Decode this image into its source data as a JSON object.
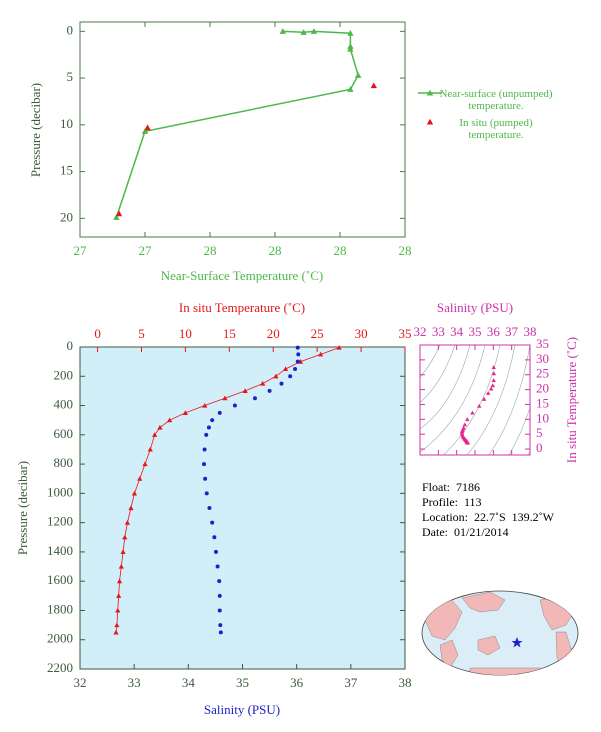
{
  "chart_data": [
    {
      "type": "line",
      "x_label": "Near-Surface Temperature (˚C)",
      "y_label": "Pressure (decibar)",
      "xlim": [
        27,
        28.25
      ],
      "xticks": [
        {
          "value": 27,
          "label": "27"
        },
        {
          "value": 27.25,
          "label": "27"
        },
        {
          "value": 27.5,
          "label": "28"
        },
        {
          "value": 27.75,
          "label": "28"
        },
        {
          "value": 28,
          "label": "28"
        },
        {
          "value": 28.25,
          "label": "28"
        }
      ],
      "ylim": [
        -1,
        22
      ],
      "yticks": [
        0,
        5,
        10,
        15,
        20
      ],
      "y_inverted": true,
      "legend": "right",
      "series": [
        {
          "name": "Near-surface (unpumped) temperature.",
          "color": "#4db848",
          "marker": "triangle",
          "line": true,
          "x": [
            27.78,
            27.86,
            27.9,
            28.04,
            28.04,
            28.04,
            28.07,
            28.04,
            27.25,
            27.14
          ],
          "y": [
            0.0,
            0.1,
            0.0,
            0.2,
            1.6,
            1.9,
            4.7,
            6.2,
            10.7,
            19.9
          ]
        },
        {
          "name": "In situ (pumped) temperature.",
          "color": "#e8141b",
          "marker": "triangle",
          "line": false,
          "x": [
            28.13,
            27.26,
            27.15
          ],
          "y": [
            5.8,
            10.3,
            19.5
          ]
        }
      ]
    },
    {
      "type": "profile",
      "y_label": "Pressure (decibar)",
      "ylim": [
        0,
        2200
      ],
      "yticks": [
        0,
        200,
        400,
        600,
        800,
        1000,
        1200,
        1400,
        1600,
        1800,
        2000,
        2200
      ],
      "y_inverted": true,
      "xlim": [
        32,
        38
      ],
      "xticks": [
        32,
        33,
        34,
        35,
        36,
        37,
        38
      ],
      "x2lim": [
        -2,
        35
      ],
      "x2ticks": [
        0,
        5,
        10,
        15,
        20,
        25,
        30,
        35
      ],
      "background": "#d2eef8",
      "y": [
        4,
        50,
        100,
        150,
        200,
        250,
        300,
        350,
        400,
        450,
        500,
        550,
        600,
        700,
        800,
        900,
        1000,
        1100,
        1200,
        1300,
        1400,
        1500,
        1600,
        1700,
        1800,
        1900,
        1950
      ],
      "series": [
        {
          "name": "In situ Temperature (˚C)",
          "color": "#e8141b",
          "axis": "x2",
          "marker": "triangle",
          "line": true,
          "x": [
            27.5,
            25.4,
            23.1,
            21.4,
            20.3,
            18.8,
            16.8,
            14.5,
            12.2,
            10.0,
            8.2,
            7.1,
            6.5,
            6.0,
            5.4,
            4.8,
            4.2,
            3.8,
            3.4,
            3.1,
            2.9,
            2.7,
            2.5,
            2.4,
            2.3,
            2.2,
            2.1
          ]
        },
        {
          "name": "Salinity (PSU)",
          "color": "#1b22c8",
          "axis": "x",
          "marker": "dot",
          "line": false,
          "x": [
            36.02,
            36.03,
            36.02,
            35.97,
            35.88,
            35.72,
            35.5,
            35.23,
            34.86,
            34.58,
            34.44,
            34.38,
            34.33,
            34.3,
            34.29,
            34.31,
            34.34,
            34.39,
            34.44,
            34.48,
            34.51,
            34.54,
            34.57,
            34.58,
            34.58,
            34.59,
            34.6
          ]
        }
      ]
    },
    {
      "type": "scatter",
      "x_label": "Salinity (PSU)",
      "y_label": "In situ Temperature (˚C)",
      "xlim": [
        32,
        38
      ],
      "xticks": [
        32,
        33,
        34,
        35,
        36,
        37,
        38
      ],
      "ylim": [
        -2,
        35
      ],
      "yticks": [
        0,
        5,
        10,
        15,
        20,
        25,
        30,
        35
      ],
      "axis_color": "#cc33aa",
      "color": "#e6278f",
      "x": [
        36.02,
        36.03,
        36.02,
        35.97,
        35.88,
        35.72,
        35.5,
        35.23,
        34.86,
        34.58,
        34.44,
        34.38,
        34.33,
        34.3,
        34.29,
        34.31,
        34.34,
        34.39,
        34.44,
        34.48,
        34.51,
        34.54,
        34.57,
        34.58,
        34.58,
        34.59,
        34.6
      ],
      "y": [
        27.5,
        25.4,
        23.1,
        21.4,
        20.3,
        18.8,
        16.8,
        14.5,
        12.2,
        10.0,
        8.2,
        7.1,
        6.5,
        6.0,
        5.4,
        4.8,
        4.2,
        3.8,
        3.4,
        3.1,
        2.9,
        2.7,
        2.5,
        2.4,
        2.3,
        2.2,
        2.1
      ]
    }
  ],
  "info": {
    "lines": [
      "Float:  7186",
      "Profile:  113",
      "Location:  22.7˚S  139.2˚W",
      "Date:  01/21/2014"
    ]
  }
}
